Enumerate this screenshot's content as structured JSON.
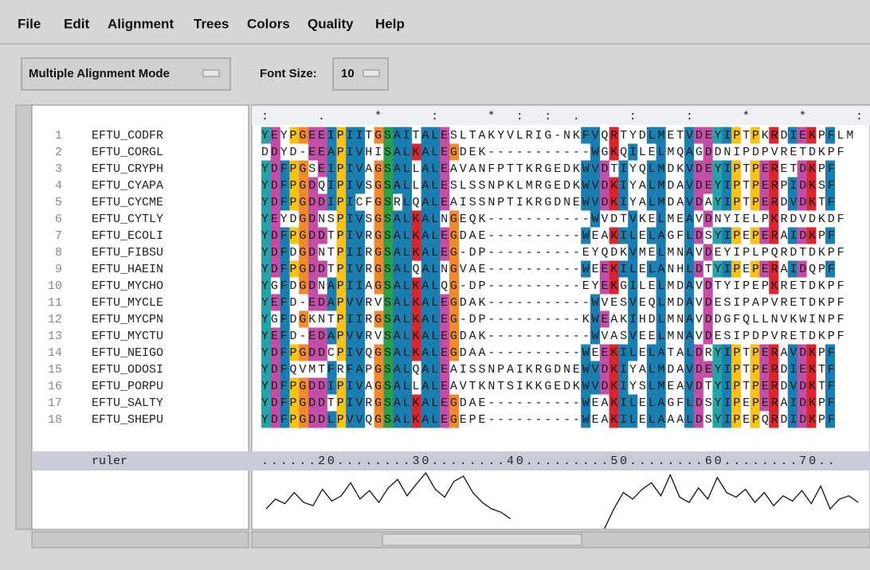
{
  "menu": [
    "File",
    "Edit",
    "Alignment",
    "Trees",
    "Colors",
    "Quality",
    "Help"
  ],
  "toolbar": {
    "mode": "Multiple Alignment Mode",
    "font_size_label": "Font Size:",
    "font_size": "10"
  },
  "alignment": {
    "conservation": ":          .     * :  *::.           :    :   *       *   :          :",
    "rows": [
      {
        "number": "1",
        "name": "EFTU_CODFR",
        "sequence": "YEYPGEEIPIITGSAITALESLTAKYVLRIG-NKFVQRTYDLMETVDEYIPTPKRDIEKPFLM"
      },
      {
        "number": "2",
        "name": "EFTU_CORGL",
        "sequence": "DDYD-EEAPIVHISALKALEGDEK-----------WGKQILELMQAGDDNIPDPVRETDKPF"
      },
      {
        "number": "3",
        "name": "EFTU_CRYPH",
        "sequence": "YDFPGSEIPIVAGSALLALEAVANFPTTKRGEDKWVDTIYQLMDKVDEYIPTPERETDKPF"
      },
      {
        "number": "4",
        "name": "EFTU_CYAPA",
        "sequence": "YDFPGDQIPIVSGSALLALESLSSNPKLMRGEDKWVDKIYALMDAVDEYIPTPERPIDKSF"
      },
      {
        "number": "5",
        "name": "EFTU_CYCME",
        "sequence": "YDFPGDDIPICFGSRLQALEAISSNPTIKRGDNEWVDKIYALMDAVDAYIPTPERDVDKTF"
      },
      {
        "number": "6",
        "name": "EFTU_CYTLY",
        "sequence": "YEYDGDNSPIVSGSALKALNGEQK-----------WVDTVKELMEAVDNYIELPKRDVDKDF"
      },
      {
        "number": "7",
        "name": "EFTU_ECOLI",
        "sequence": "YDFPGDDTPIVRGSALKALEGDAE----------WEAKILELAGFLDSYIPEPERAIDKPF"
      },
      {
        "number": "8",
        "name": "EFTU_FIBSU",
        "sequence": "YDFDGDNTPIIRGSALKALEG-DP----------EYQDKVMELMNAVDEYIPLPQRDTDKPF"
      },
      {
        "number": "9",
        "name": "EFTU_HAEIN",
        "sequence": "YDFPGDDTPIVRGSALQALNGVAE----------WEEKILELANHLDTYIPEPERAIDQPF"
      },
      {
        "number": "10",
        "name": "EFTU_MYCHO",
        "sequence": "YGFDGDNAPIIAGSALKALQG-DP----------EYEKGILELMDAVDTYIPEPKRETDKPF"
      },
      {
        "number": "11",
        "name": "EFTU_MYCLE",
        "sequence": "YEFD-EDAPVVRVSALKALEGDAK-----------WVESVEQLMDAVDESIPAPVRETDKPF"
      },
      {
        "number": "12",
        "name": "EFTU_MYCPN",
        "sequence": "YGFDGKNTPIIRGSALKALEG-DP----------KWEAKIHDLMNAVDDGFQLLNVKWINPF"
      },
      {
        "number": "13",
        "name": "EFTU_MYCTU",
        "sequence": "YEFD-EDAPVVRVSALKALEGDAK-----------WVASVEELMNAVDESIPDPVRETDKPF"
      },
      {
        "number": "14",
        "name": "EFTU_NEIGO",
        "sequence": "YDFPGDDCPIVQGSALKALEGDAA----------WEEKILELATALDRYIPTPERAVDKPF"
      },
      {
        "number": "15",
        "name": "EFTU_ODOSI",
        "sequence": "YDFQVMTFRFAPGSALQALEAISSNPAIKRGDNEWVDKIYALMDAVDEYIPTPERDIEKTF"
      },
      {
        "number": "16",
        "name": "EFTU_PORPU",
        "sequence": "YDFPGDDIPIVAGSALLALEAVTKNTSIKKGEDKWVDKIYSLMEAVDTYIPTPERDVDKTF"
      },
      {
        "number": "17",
        "name": "EFTU_SALTY",
        "sequence": "YDFPGDDTPIVRGSALKALEGDAE----------WEAKILELAGFLDSYIPEPERAIDKPF"
      },
      {
        "number": "18",
        "name": "EFTU_SHEPU",
        "sequence": "YDFPGDDLPVVQGSALKALEGEPE----------WEAKILELAAALDSYIPEPQRDIDKPF"
      }
    ],
    "ruler_label": "ruler",
    "ruler": "......20........30........40.........50........60........70..",
    "quality": [
      30,
      45,
      38,
      55,
      40,
      35,
      60,
      42,
      50,
      70,
      45,
      58,
      40,
      62,
      75,
      50,
      68,
      85,
      60,
      48,
      72,
      80,
      55,
      40,
      30,
      25,
      15,
      null,
      null,
      null,
      null,
      null,
      null,
      null,
      null,
      null,
      0,
      30,
      55,
      45,
      60,
      70,
      50,
      82,
      48,
      40,
      62,
      45,
      78,
      55,
      48,
      60,
      40,
      55,
      35,
      50,
      42,
      58,
      38,
      65,
      30,
      45,
      50,
      40
    ],
    "residue_colors": {
      "A": "#1a7fb0",
      "I": "#1a7fb0",
      "L": "#1a7fb0",
      "M": "#1a7fb0",
      "F": "#1a7fb0",
      "W": "#1a7fb0",
      "V": "#1a7fb0",
      "C": "#e07a8a",
      "K": "#d8262f",
      "R": "#d8262f",
      "E": "#c34ea8",
      "D": "#c34ea8",
      "N": "#2ba04a",
      "Q": "#2ba04a",
      "S": "#2ba04a",
      "T": "#2ba04a",
      "G": "#f08a2c",
      "P": "#f5c21a",
      "H": "#24a3a8",
      "Y": "#24a3a8"
    }
  }
}
